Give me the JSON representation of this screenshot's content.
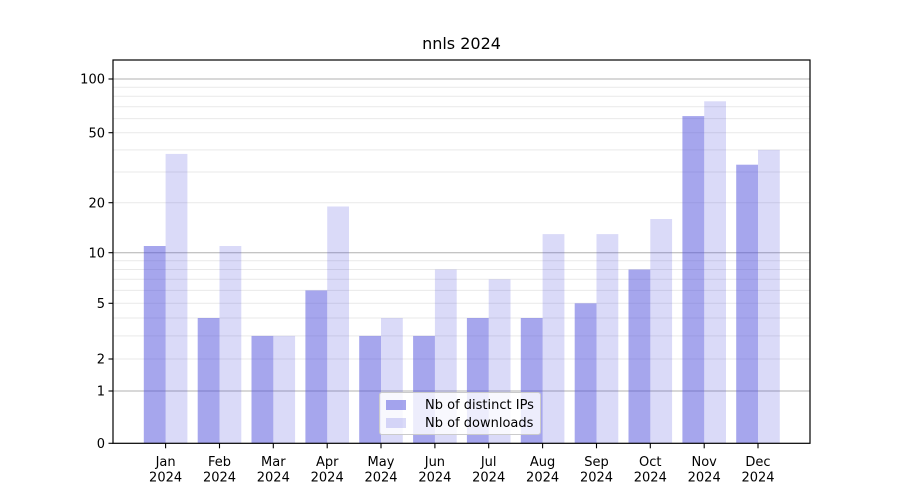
{
  "title": "nnls 2024",
  "chart_data": {
    "type": "bar",
    "title": "nnls 2024",
    "categories": [
      "Jan",
      "Feb",
      "Mar",
      "Apr",
      "May",
      "Jun",
      "Jul",
      "Aug",
      "Sep",
      "Oct",
      "Nov",
      "Dec"
    ],
    "year_label": "2024",
    "series": [
      {
        "name": "Nb of distinct IPs",
        "values": [
          11,
          4,
          3,
          6,
          3,
          3,
          4,
          4,
          5,
          8,
          62,
          33
        ]
      },
      {
        "name": "Nb of downloads",
        "values": [
          38,
          11,
          3,
          19,
          4,
          8,
          7,
          13,
          13,
          16,
          75,
          40
        ]
      }
    ],
    "yscale": "log1p",
    "yticks": [
      0,
      1,
      2,
      5,
      10,
      20,
      50,
      100
    ],
    "ylim": [
      0,
      128
    ],
    "xlabel": "",
    "ylabel": "",
    "grid": "on",
    "legend_position": "lower center"
  },
  "colors": {
    "series_distinct_ips": "rgba(80,80,220,0.51)",
    "series_downloads": "rgba(80,80,220,0.21)",
    "major_grid": "#b0b0b0",
    "minor_grid": "#e9e9e9",
    "axis": "#000000",
    "text": "#000000",
    "legend_border": "#cbcbcb"
  }
}
